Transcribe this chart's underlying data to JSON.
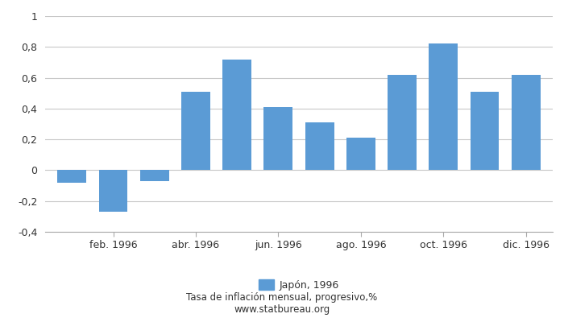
{
  "x_labels_shown": [
    "feb. 1996",
    "abr. 1996",
    "jun. 1996",
    "ago. 1996",
    "oct. 1996",
    "dic. 1996"
  ],
  "values": [
    -0.08,
    -0.27,
    -0.07,
    0.51,
    0.72,
    0.41,
    0.31,
    0.21,
    0.62,
    0.82,
    0.51,
    0.62
  ],
  "bar_color": "#5b9bd5",
  "ylim": [
    -0.4,
    1.0
  ],
  "yticks": [
    -0.4,
    -0.2,
    0.0,
    0.2,
    0.4,
    0.6,
    0.8,
    1.0
  ],
  "legend_label": "Japón, 1996",
  "subtitle": "Tasa de inflación mensual, progresivo,%",
  "website": "www.statbureau.org",
  "background_color": "#ffffff",
  "grid_color": "#c8c8c8"
}
